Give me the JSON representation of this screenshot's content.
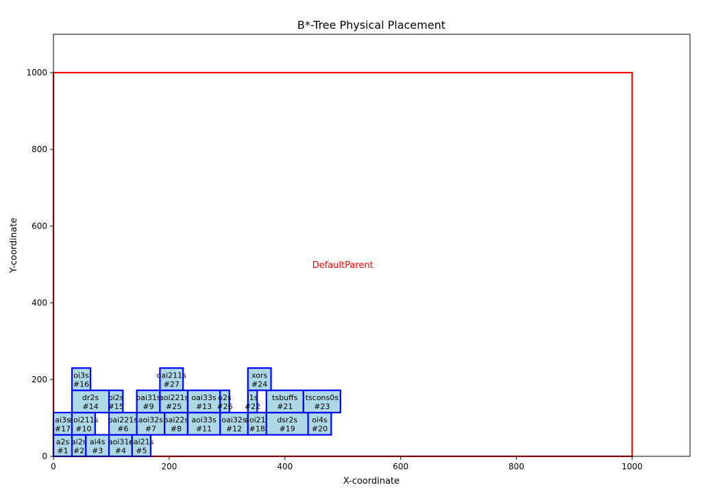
{
  "chart_data": {
    "type": "scatter",
    "title": "B*-Tree Physical Placement",
    "xlabel": "X-coordinate",
    "ylabel": "Y-coordinate",
    "xlim": [
      0,
      1100
    ],
    "ylim": [
      0,
      1100
    ],
    "xticks": [
      "0",
      "200",
      "400",
      "600",
      "800",
      "1000"
    ],
    "yticks": [
      "0",
      "200",
      "400",
      "600",
      "800",
      "1000"
    ],
    "grid": false,
    "parent": {
      "name": "DefaultParent",
      "x0": 0,
      "y0": 0,
      "x1": 1000,
      "y1": 1000,
      "color": "#ff0000"
    },
    "colors": {
      "cell_fill": "#add8e6",
      "cell_edge": "#0000ff"
    },
    "cells": [
      {
        "name": "a2s",
        "id": "#1",
        "x": 0,
        "y": 0,
        "w": 32,
        "h": 56
      },
      {
        "name": "ai2s",
        "id": "#2",
        "x": 32,
        "y": 0,
        "w": 24,
        "h": 56
      },
      {
        "name": "ai4s",
        "id": "#3",
        "x": 56,
        "y": 0,
        "w": 40,
        "h": 56
      },
      {
        "name": "aoi31s",
        "id": "#4",
        "x": 96,
        "y": 0,
        "w": 40,
        "h": 56
      },
      {
        "name": "oai21s",
        "id": "#5",
        "x": 136,
        "y": 0,
        "w": 32,
        "h": 56
      },
      {
        "name": "ai3s",
        "id": "#17",
        "x": 0,
        "y": 56,
        "w": 32,
        "h": 58
      },
      {
        "name": "aoi211s",
        "id": "#10",
        "x": 32,
        "y": 56,
        "w": 40,
        "h": 58
      },
      {
        "name": "oai221s",
        "id": "#6",
        "x": 96,
        "y": 56,
        "w": 48,
        "h": 58
      },
      {
        "name": "aoi32s",
        "id": "#7",
        "x": 144,
        "y": 56,
        "w": 48,
        "h": 58
      },
      {
        "name": "oai22s",
        "id": "#8",
        "x": 192,
        "y": 56,
        "w": 40,
        "h": 58
      },
      {
        "name": "aoi33s",
        "id": "#11",
        "x": 232,
        "y": 56,
        "w": 56,
        "h": 58
      },
      {
        "name": "oai32s",
        "id": "#12",
        "x": 288,
        "y": 56,
        "w": 48,
        "h": 58
      },
      {
        "name": "aoi21s",
        "id": "#18",
        "x": 336,
        "y": 56,
        "w": 32,
        "h": 58
      },
      {
        "name": "dsr2s",
        "id": "#19",
        "x": 368,
        "y": 56,
        "w": 72,
        "h": 58
      },
      {
        "name": "oi4s",
        "id": "#20",
        "x": 440,
        "y": 56,
        "w": 40,
        "h": 58
      },
      {
        "name": "dr2s",
        "id": "#14",
        "x": 32,
        "y": 114,
        "w": 64,
        "h": 58
      },
      {
        "name": "oi2s",
        "id": "#15",
        "x": 96,
        "y": 114,
        "w": 24,
        "h": 58
      },
      {
        "name": "oai31s",
        "id": "#9",
        "x": 144,
        "y": 114,
        "w": 40,
        "h": 58
      },
      {
        "name": "aoi221s",
        "id": "#25",
        "x": 184,
        "y": 114,
        "w": 48,
        "h": 58
      },
      {
        "name": "oai33s",
        "id": "#13",
        "x": 232,
        "y": 114,
        "w": 56,
        "h": 58
      },
      {
        "name": "o2s",
        "id": "#26",
        "x": 288,
        "y": 114,
        "w": 16,
        "h": 58
      },
      {
        "name": "i1s",
        "id": "#22",
        "x": 336,
        "y": 114,
        "w": 16,
        "h": 58
      },
      {
        "name": "tsbuffs",
        "id": "#21",
        "x": 368,
        "y": 114,
        "w": 64,
        "h": 58
      },
      {
        "name": "tscons0s",
        "id": "#23",
        "x": 432,
        "y": 114,
        "w": 64,
        "h": 58
      },
      {
        "name": "oi3s",
        "id": "#16",
        "x": 32,
        "y": 172,
        "w": 32,
        "h": 58
      },
      {
        "name": "oai211s",
        "id": "#27",
        "x": 184,
        "y": 172,
        "w": 40,
        "h": 58
      },
      {
        "name": "xors",
        "id": "#24",
        "x": 336,
        "y": 172,
        "w": 40,
        "h": 58
      }
    ]
  }
}
